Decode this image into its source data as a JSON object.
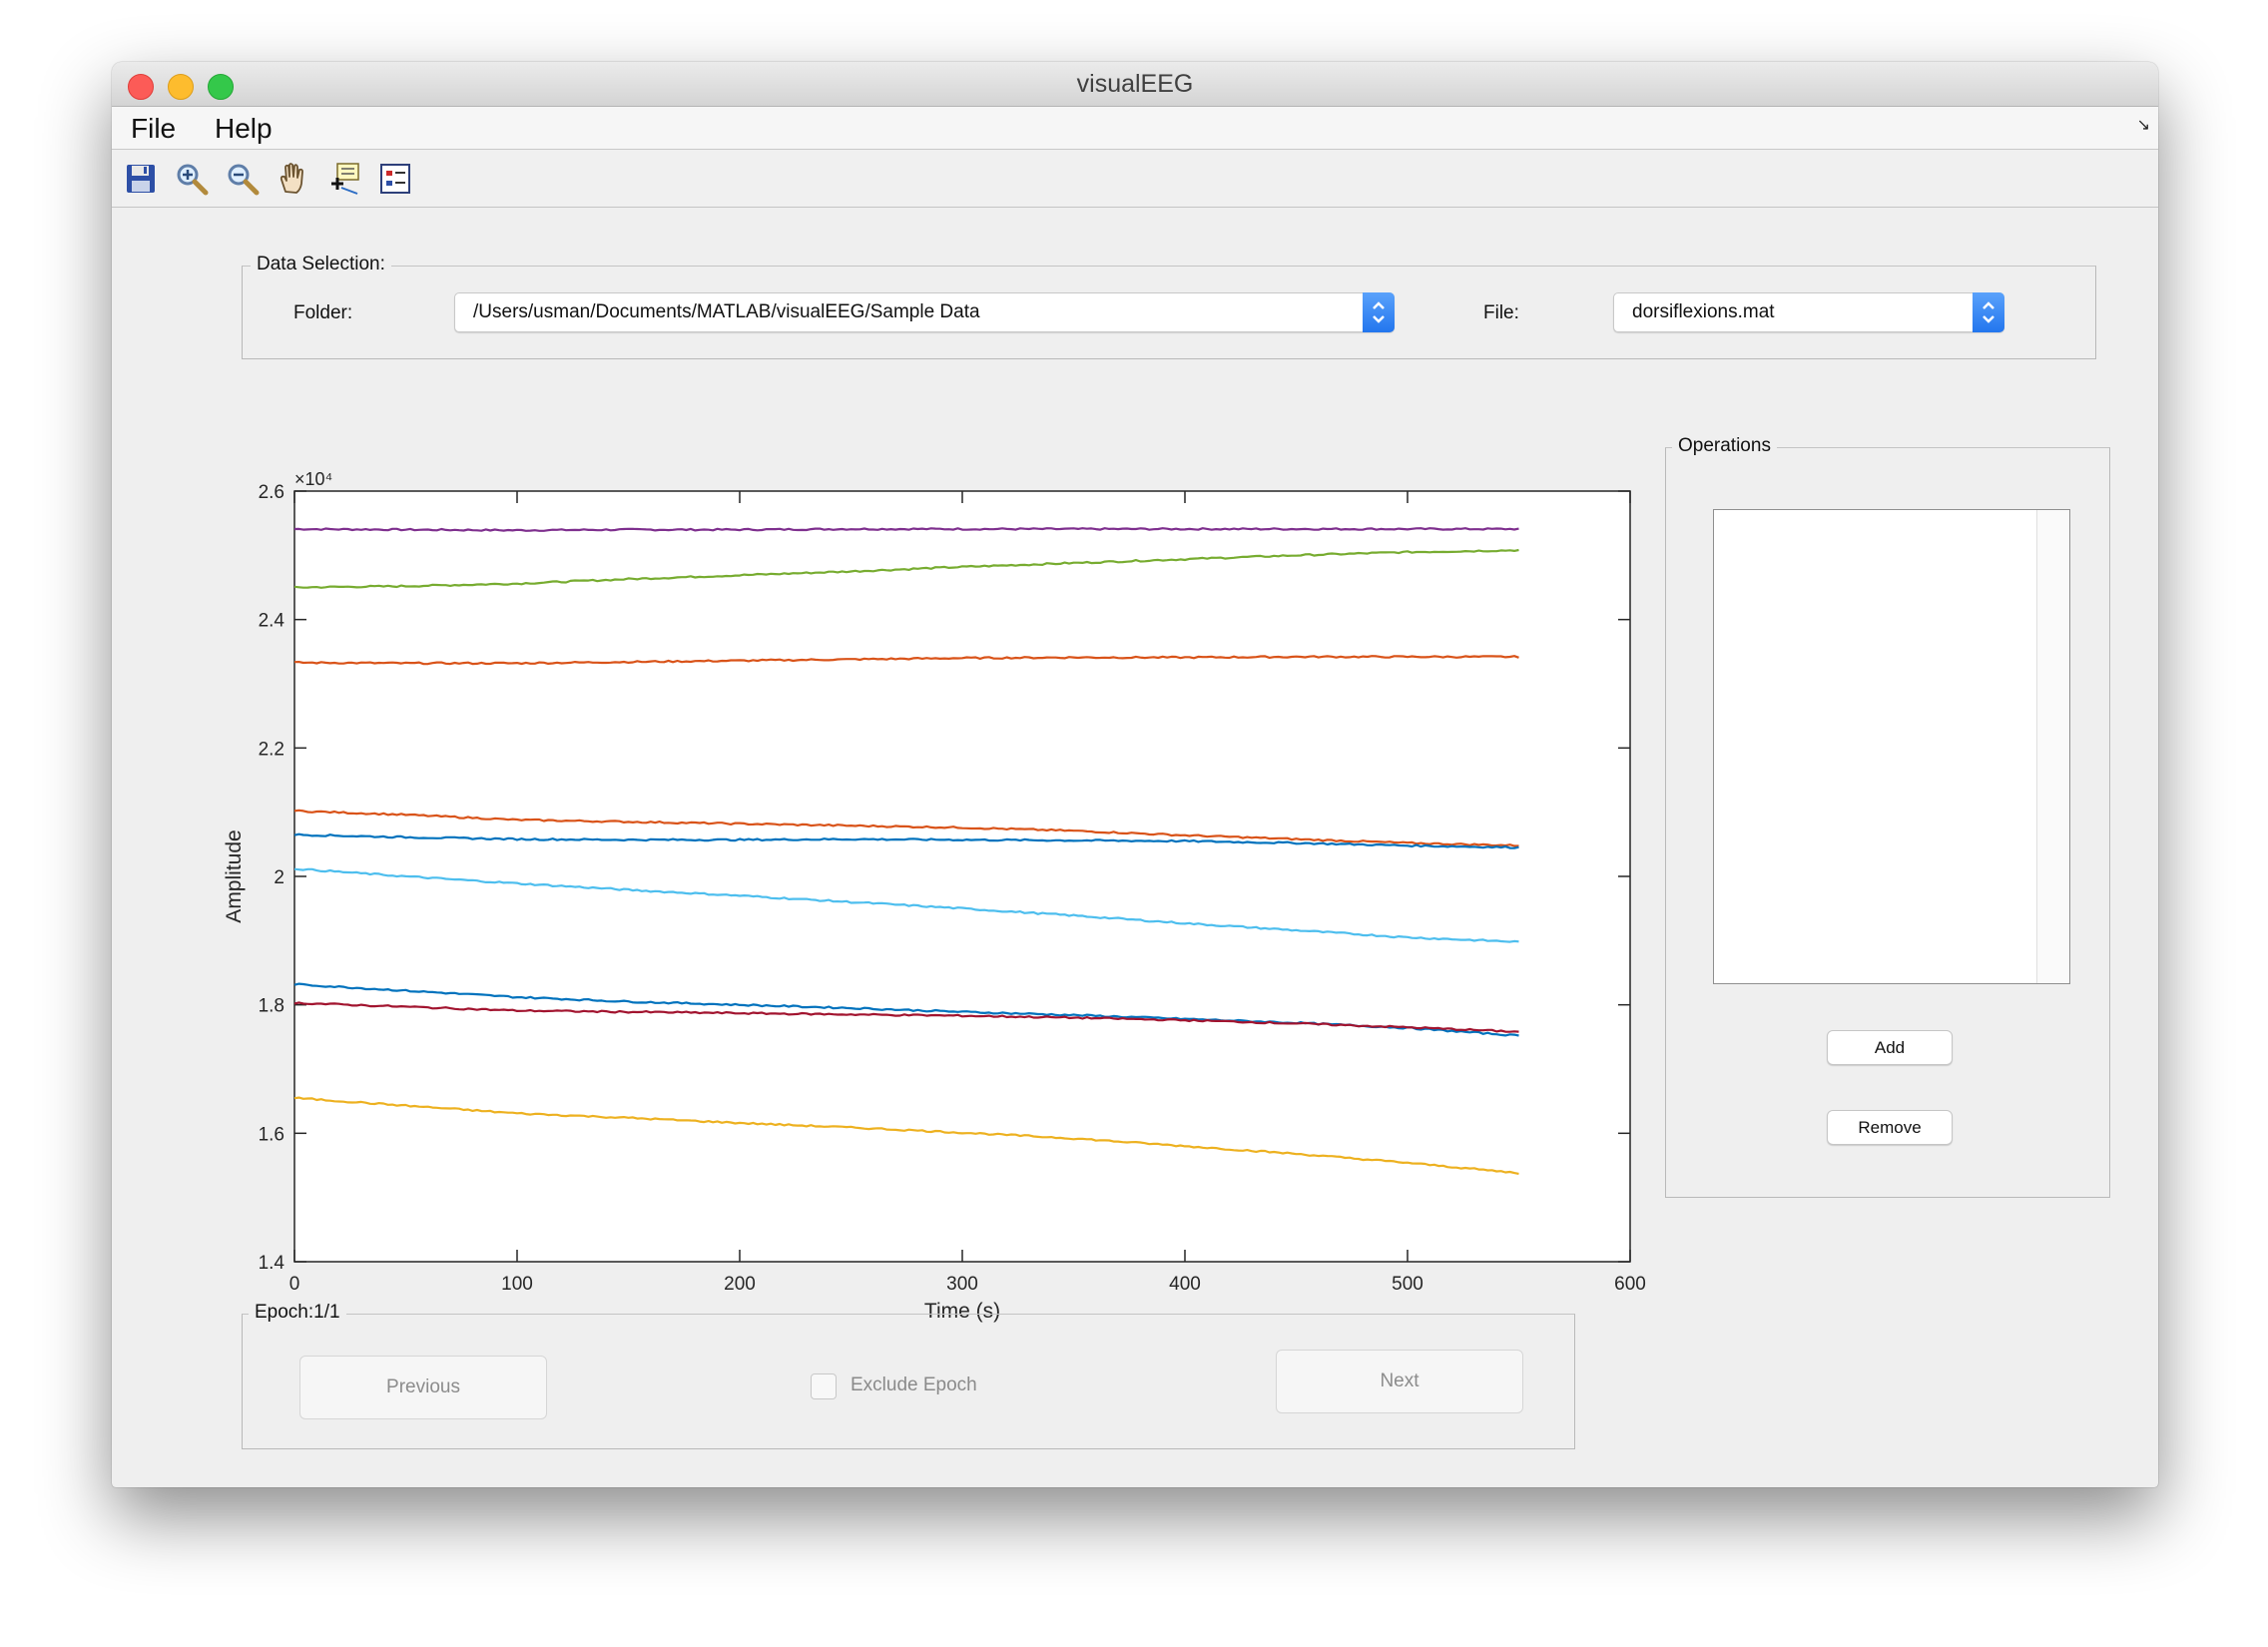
{
  "window": {
    "title": "visualEEG"
  },
  "menubar": {
    "items": [
      "File",
      "Help"
    ]
  },
  "toolbar": {
    "icons": [
      "save-icon",
      "zoom-in-icon",
      "zoom-out-icon",
      "pan-hand-icon",
      "data-cursor-icon",
      "insert-legend-icon"
    ]
  },
  "data_selection": {
    "title": "Data Selection:",
    "folder_label": "Folder:",
    "folder_value": "/Users/usman/Documents/MATLAB/visualEEG/Sample Data",
    "file_label": "File:",
    "file_value": "dorsiflexions.mat"
  },
  "operations": {
    "title": "Operations",
    "add_label": "Add",
    "remove_label": "Remove"
  },
  "epoch": {
    "title": "Epoch:1/1",
    "previous_label": "Previous",
    "exclude_label": "Exclude Epoch",
    "next_label": "Next"
  },
  "chart_data": {
    "type": "line",
    "xlabel": "Time (s)",
    "ylabel": "Amplitude",
    "y_multiplier": "×10⁴",
    "xlim": [
      0,
      600
    ],
    "ylim": [
      1.4,
      2.6
    ],
    "xticks": [
      0,
      100,
      200,
      300,
      400,
      500,
      600
    ],
    "yticks": [
      1.4,
      1.6,
      1.8,
      2.0,
      2.2,
      2.4,
      2.6
    ],
    "ytick_labels": [
      "1.4",
      "1.6",
      "1.8",
      "2",
      "2.2",
      "2.4",
      "2.6"
    ],
    "grid": false,
    "x": [
      0,
      50,
      100,
      150,
      200,
      250,
      300,
      350,
      400,
      450,
      500,
      550
    ],
    "series": [
      {
        "color": "#7e2f8e",
        "values": [
          2.541,
          2.54,
          2.539,
          2.54,
          2.54,
          2.541,
          2.541,
          2.541,
          2.541,
          2.541,
          2.541,
          2.541
        ]
      },
      {
        "color": "#77ac30",
        "values": [
          2.45,
          2.452,
          2.456,
          2.463,
          2.469,
          2.475,
          2.482,
          2.488,
          2.494,
          2.5,
          2.505,
          2.508
        ]
      },
      {
        "color": "#d95319",
        "values": [
          2.333,
          2.332,
          2.332,
          2.334,
          2.336,
          2.338,
          2.34,
          2.341,
          2.341,
          2.342,
          2.342,
          2.342
        ]
      },
      {
        "color": "#d95319",
        "values": [
          2.102,
          2.096,
          2.088,
          2.085,
          2.082,
          2.079,
          2.076,
          2.071,
          2.064,
          2.058,
          2.052,
          2.048
        ]
      },
      {
        "color": "#0072bd",
        "values": [
          2.065,
          2.061,
          2.058,
          2.057,
          2.057,
          2.058,
          2.057,
          2.056,
          2.055,
          2.052,
          2.048,
          2.045
        ]
      },
      {
        "color": "#4dbeee",
        "values": [
          2.012,
          2.0,
          1.989,
          1.979,
          1.97,
          1.96,
          1.95,
          1.939,
          1.927,
          1.916,
          1.905,
          1.898
        ]
      },
      {
        "color": "#0072bd",
        "values": [
          1.832,
          1.822,
          1.812,
          1.805,
          1.8,
          1.795,
          1.789,
          1.784,
          1.778,
          1.772,
          1.764,
          1.752
        ]
      },
      {
        "color": "#a2142f",
        "values": [
          1.803,
          1.797,
          1.791,
          1.789,
          1.787,
          1.785,
          1.783,
          1.78,
          1.776,
          1.771,
          1.765,
          1.758
        ]
      },
      {
        "color": "#edb120",
        "values": [
          1.655,
          1.643,
          1.631,
          1.624,
          1.616,
          1.609,
          1.601,
          1.592,
          1.58,
          1.568,
          1.554,
          1.538
        ]
      }
    ]
  }
}
